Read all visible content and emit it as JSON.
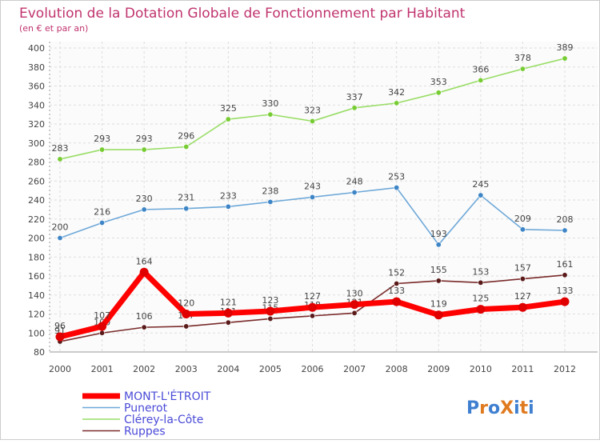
{
  "chart_data": {
    "type": "line",
    "title": "Evolution de la Dotation Globale de Fonctionnement par Habitant",
    "subtitle": "(en € et par an)",
    "x": [
      "2000",
      "2001",
      "2002",
      "2003",
      "2004",
      "2005",
      "2006",
      "2007",
      "2008",
      "2009",
      "2010",
      "2011",
      "2012"
    ],
    "ylim": [
      80,
      400
    ],
    "yticks": [
      80,
      100,
      120,
      140,
      160,
      180,
      200,
      220,
      240,
      260,
      280,
      300,
      320,
      340,
      360,
      380,
      400
    ],
    "grid": true,
    "legend_position": "bottom-left",
    "series": [
      {
        "name": "MONT-L'ÉTROIT",
        "color": "#ff0000",
        "marker": "#e00000",
        "values": [
          96,
          107,
          164,
          120,
          121,
          123,
          127,
          130,
          133,
          119,
          125,
          127,
          133
        ]
      },
      {
        "name": "Punerot",
        "color": "#6ea8d8",
        "marker": "#3d85c6",
        "values": [
          200,
          216,
          230,
          231,
          233,
          238,
          243,
          248,
          253,
          193,
          245,
          209,
          208
        ]
      },
      {
        "name": "Clérey-la-Côte",
        "color": "#99dd66",
        "marker": "#77cc33",
        "values": [
          283,
          293,
          293,
          296,
          325,
          330,
          323,
          337,
          342,
          353,
          366,
          378,
          389
        ]
      },
      {
        "name": "Ruppes",
        "color": "#7a2a2a",
        "marker": "#5a1a1a",
        "values": [
          91,
          100,
          106,
          107,
          111,
          115,
          118,
          121,
          152,
          155,
          153,
          157,
          161
        ]
      }
    ]
  },
  "logo": {
    "text": "ProXiti"
  }
}
